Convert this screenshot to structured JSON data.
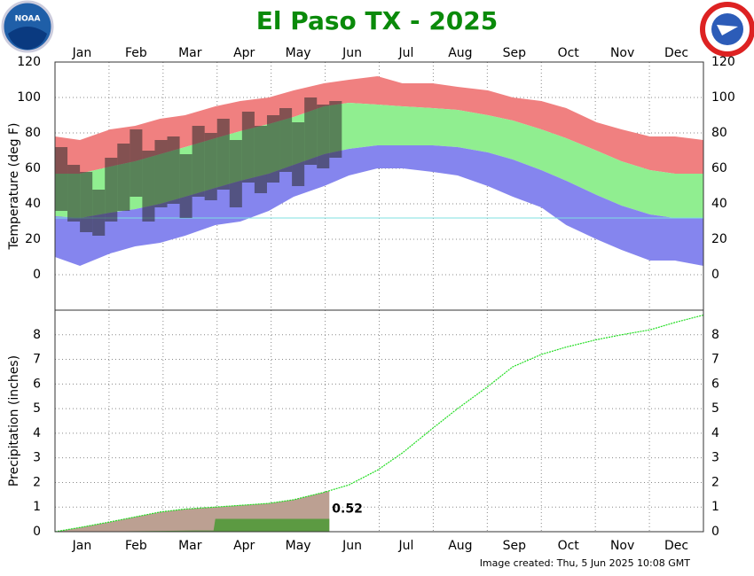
{
  "title": "El Paso TX - 2025",
  "footer": "Image created: Thu, 5 Jun 2025 10:08 GMT",
  "logos": {
    "left": "NOAA"
  },
  "chart_data": [
    {
      "type": "range",
      "ylabel": "Temperature (deg F)",
      "categories": [
        "Jan",
        "Feb",
        "Mar",
        "Apr",
        "May",
        "Jun",
        "Jul",
        "Aug",
        "Sep",
        "Oct",
        "Nov",
        "Dec"
      ],
      "xlim": [
        1,
        365
      ],
      "ylim": [
        -20,
        120
      ],
      "yticks": [
        0,
        20,
        40,
        60,
        80,
        100,
        120
      ],
      "grid": true,
      "x": [
        1,
        15,
        32,
        46,
        60,
        74,
        91,
        105,
        121,
        135,
        152,
        166,
        182,
        196,
        213,
        227,
        244,
        258,
        274,
        288,
        305,
        319,
        335,
        349,
        365
      ],
      "bands": [
        {
          "color": "#f08080",
          "high": [
            78,
            76,
            82,
            84,
            88,
            90,
            95,
            98,
            100,
            104,
            108,
            110,
            112,
            108,
            108,
            106,
            104,
            100,
            98,
            94,
            86,
            82,
            78,
            78,
            76
          ],
          "low": [
            57,
            57,
            61,
            64,
            68,
            72,
            77,
            81,
            85,
            89,
            95,
            97,
            96,
            95,
            94,
            93,
            90,
            87,
            82,
            77,
            70,
            64,
            59,
            57,
            57
          ]
        },
        {
          "color": "#90ee90",
          "high": [
            57,
            57,
            61,
            64,
            68,
            72,
            77,
            81,
            85,
            89,
            95,
            97,
            96,
            95,
            94,
            93,
            90,
            87,
            82,
            77,
            70,
            64,
            59,
            57,
            57
          ],
          "low": [
            33,
            32,
            35,
            37,
            40,
            44,
            49,
            53,
            57,
            62,
            68,
            71,
            73,
            73,
            73,
            72,
            69,
            65,
            59,
            53,
            45,
            39,
            34,
            32,
            32
          ]
        },
        {
          "color": "#8585ee",
          "high": [
            33,
            32,
            35,
            37,
            40,
            44,
            49,
            53,
            57,
            62,
            68,
            71,
            73,
            73,
            73,
            72,
            69,
            65,
            59,
            53,
            45,
            39,
            34,
            32,
            32
          ],
          "low": [
            10,
            5,
            12,
            16,
            18,
            22,
            28,
            30,
            36,
            44,
            50,
            56,
            60,
            60,
            58,
            56,
            50,
            44,
            38,
            28,
            20,
            14,
            8,
            8,
            5
          ]
        }
      ],
      "reference": {
        "value": 32,
        "color": "#7fe0e0"
      },
      "observed": {
        "color": "#2a2a2a",
        "x": [
          1,
          8,
          15,
          22,
          29,
          36,
          43,
          50,
          57,
          64,
          71,
          78,
          85,
          92,
          99,
          106,
          113,
          120,
          127,
          134,
          141,
          148,
          155
        ],
        "high": [
          72,
          62,
          58,
          48,
          66,
          74,
          82,
          70,
          76,
          78,
          68,
          84,
          80,
          88,
          76,
          92,
          84,
          90,
          94,
          86,
          100,
          96,
          98
        ],
        "low": [
          36,
          30,
          24,
          22,
          30,
          36,
          44,
          30,
          38,
          40,
          32,
          44,
          42,
          48,
          38,
          52,
          46,
          52,
          58,
          50,
          62,
          60,
          66
        ]
      }
    },
    {
      "type": "cumulative",
      "ylabel": "Precipitation (inches)",
      "categories": [
        "Jan",
        "Feb",
        "Mar",
        "Apr",
        "May",
        "Jun",
        "Jul",
        "Aug",
        "Sep",
        "Oct",
        "Nov",
        "Dec"
      ],
      "xlim": [
        1,
        365
      ],
      "ylim": [
        0,
        9
      ],
      "yticks": [
        0,
        1,
        2,
        3,
        4,
        5,
        6,
        7,
        8
      ],
      "grid": true,
      "x": [
        1,
        15,
        32,
        46,
        60,
        74,
        91,
        105,
        121,
        135,
        152,
        166,
        182,
        196,
        213,
        227,
        244,
        258,
        274,
        288,
        305,
        319,
        335,
        349,
        365
      ],
      "normal": {
        "color": "#22dd22",
        "shade_color": "#bca092",
        "shade_through": 155,
        "values": [
          0,
          0.17,
          0.4,
          0.6,
          0.8,
          0.92,
          1.0,
          1.07,
          1.15,
          1.3,
          1.6,
          1.9,
          2.5,
          3.2,
          4.2,
          5.0,
          5.9,
          6.7,
          7.2,
          7.5,
          7.8,
          8.0,
          8.2,
          8.5,
          8.8
        ]
      },
      "actual": {
        "color": "#5c9a42",
        "x": [
          1,
          20,
          40,
          60,
          80,
          90,
          91,
          155
        ],
        "values": [
          0,
          0.01,
          0.02,
          0.03,
          0.05,
          0.05,
          0.52,
          0.52
        ]
      }
    }
  ]
}
